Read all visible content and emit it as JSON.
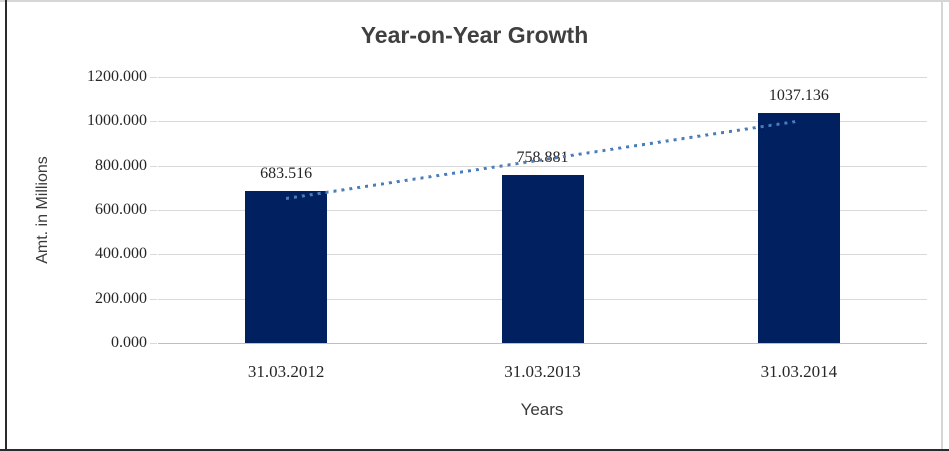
{
  "chart_data": {
    "type": "bar",
    "title": "Year-on-Year Growth",
    "xlabel": "Years",
    "ylabel": "Amt. in Millions",
    "categories": [
      "31.03.2012",
      "31.03.2013",
      "31.03.2014"
    ],
    "values": [
      683.516,
      758.881,
      1037.136
    ],
    "data_labels": [
      "683.516",
      "758.881",
      "1037.136"
    ],
    "ylim": [
      0,
      1200
    ],
    "ytick_step": 200,
    "ytick_labels": [
      "0.000",
      "200.000",
      "400.000",
      "600.000",
      "800.000",
      "1000.000",
      "1200.000"
    ],
    "grid": true,
    "legend": "none",
    "trendline": {
      "style": "dotted",
      "from_value": 683.516,
      "to_value": 1037.136
    },
    "colors": {
      "bar": "#002060",
      "trendline": "#4a7ebb",
      "gridline": "#d9d9d9",
      "axis_line": "#bfbfbf",
      "title_text": "#404040",
      "tick_text": "#262626",
      "axis_title_text": "#3a3a3a",
      "frame_border": "#d6d6d6",
      "document_border": "#2b2b2b"
    }
  }
}
